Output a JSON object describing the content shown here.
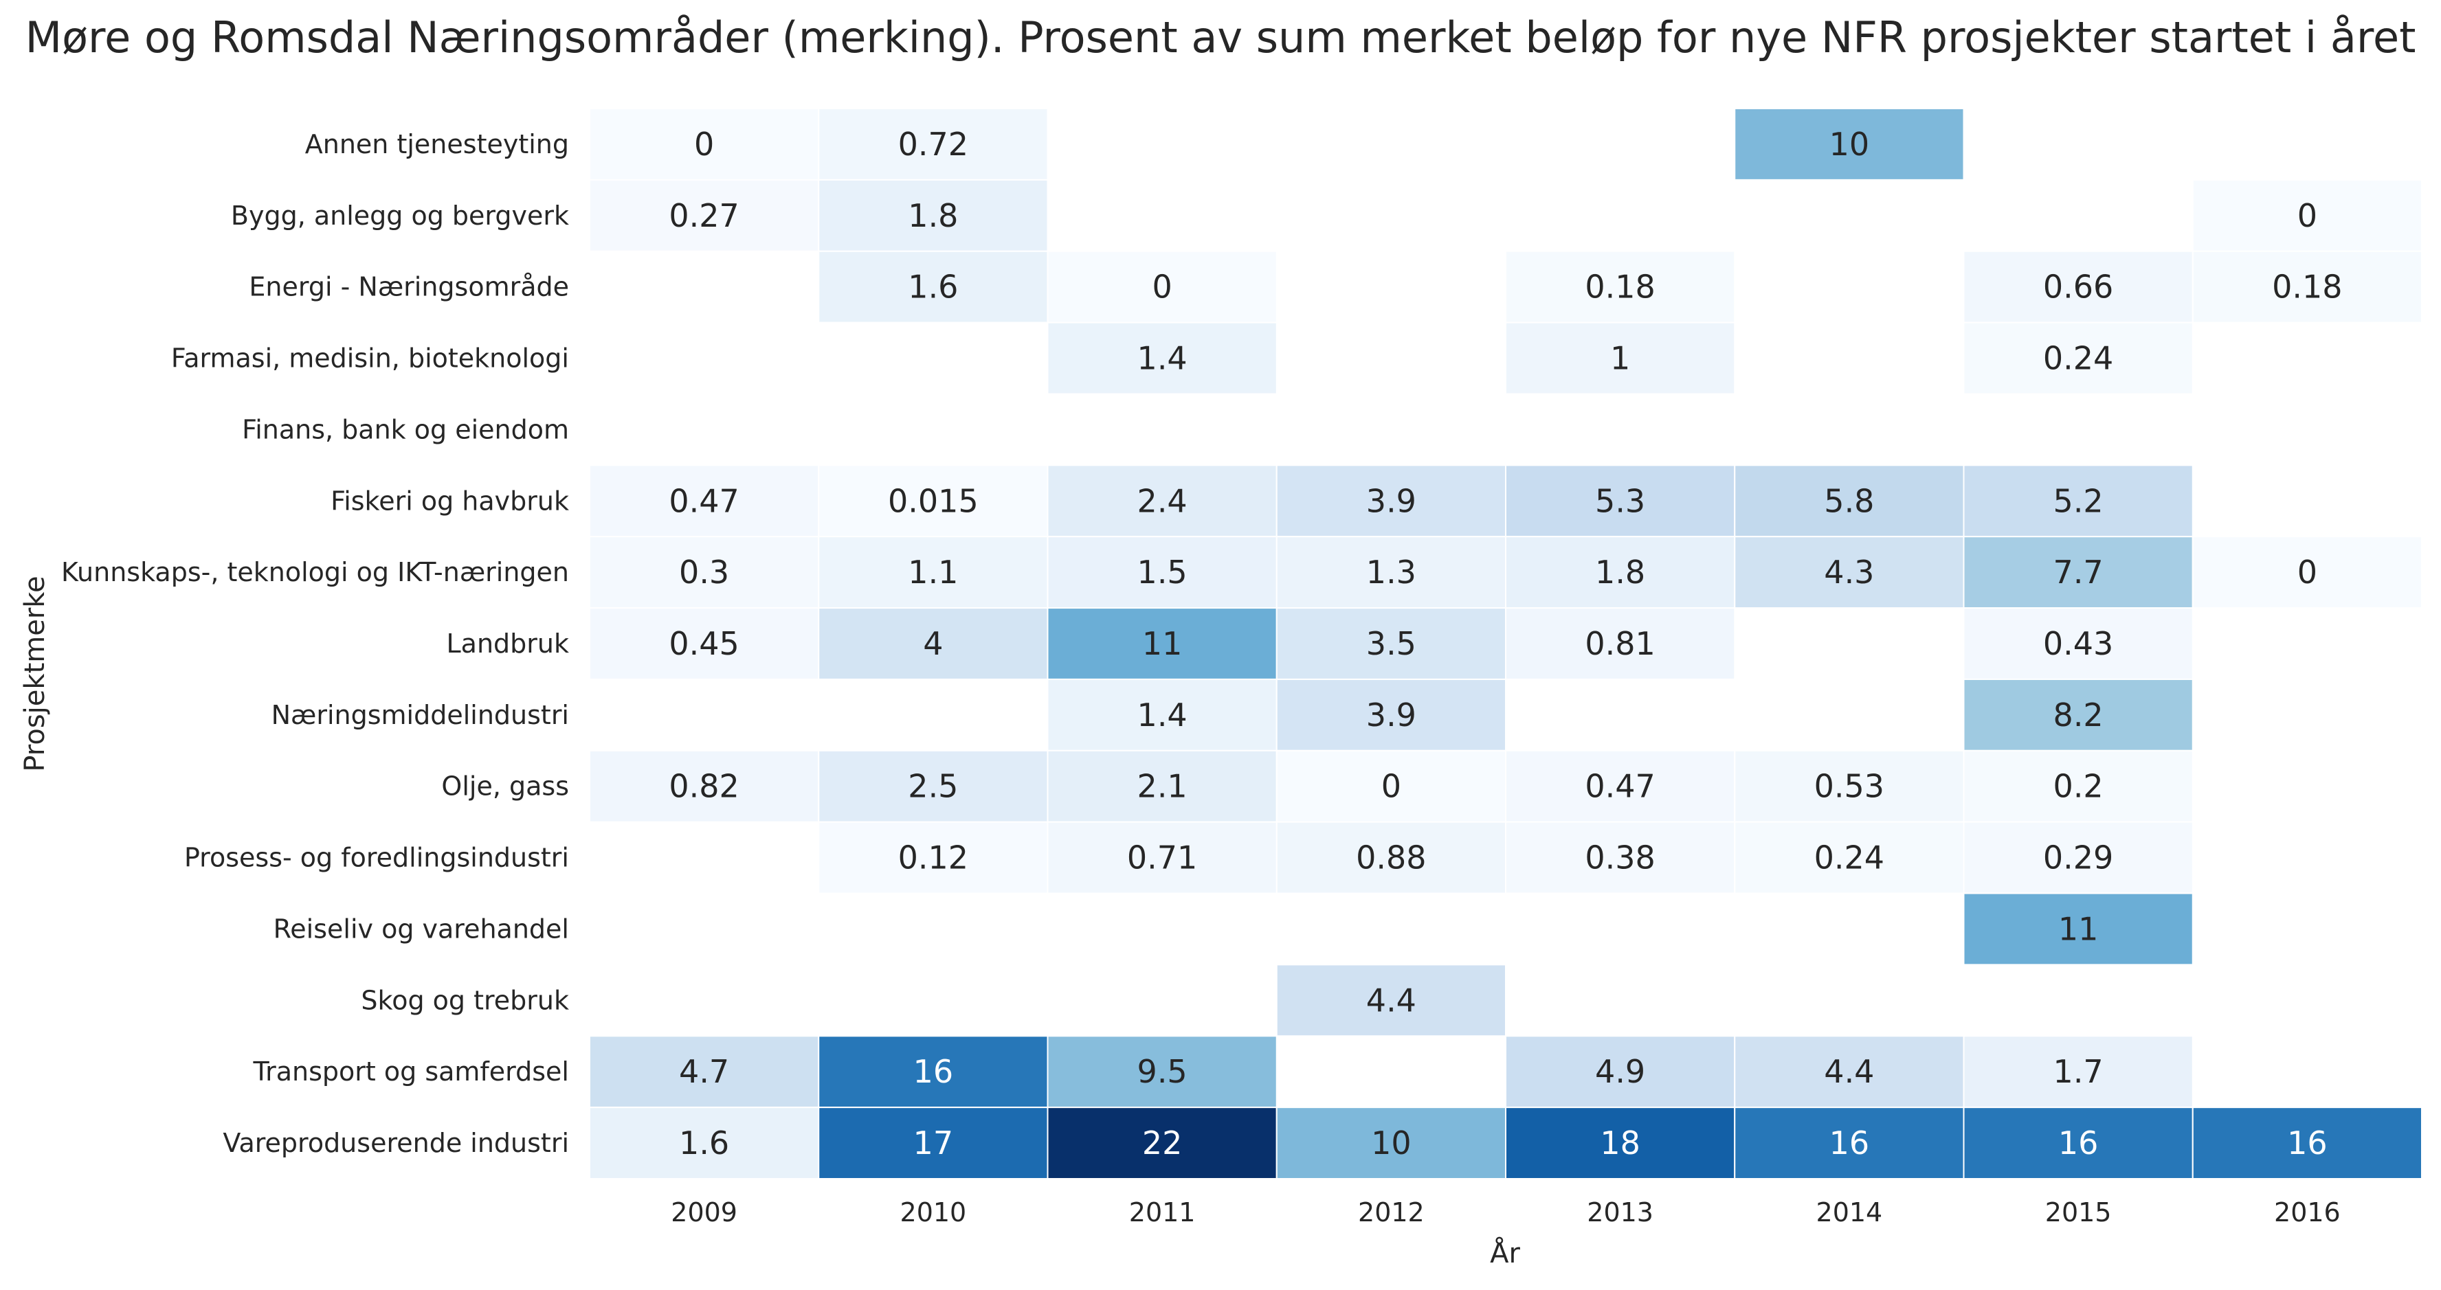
{
  "chart_data": {
    "type": "heatmap",
    "title": "Møre og Romsdal Næringsområder (merking). Prosent av sum merket beløp for nye NFR prosjekter startet i året",
    "xlabel": "År",
    "ylabel": "Prosjektmerke",
    "x_categories": [
      "2009",
      "2010",
      "2011",
      "2012",
      "2013",
      "2014",
      "2015",
      "2016"
    ],
    "y_categories": [
      "Annen tjenesteyting",
      "Bygg, anlegg og bergverk",
      "Energi - Næringsområde",
      "Farmasi, medisin, bioteknologi",
      "Finans, bank og eiendom",
      "Fiskeri og havbruk",
      "Kunnskaps-, teknologi og IKT-næringen",
      "Landbruk",
      "Næringsmiddelindustri",
      "Olje, gass",
      "Prosess- og foredlingsindustri",
      "Reiseliv og varehandel",
      "Skog og trebruk",
      "Transport og samferdsel",
      "Vareproduserende industri"
    ],
    "values": [
      [
        0,
        0.72,
        null,
        null,
        null,
        10,
        null,
        null
      ],
      [
        0.27,
        1.8,
        null,
        null,
        null,
        null,
        null,
        0
      ],
      [
        null,
        1.6,
        0,
        null,
        0.18,
        null,
        0.66,
        0.18
      ],
      [
        null,
        null,
        1.4,
        null,
        1,
        null,
        0.24,
        null
      ],
      [
        null,
        null,
        null,
        null,
        null,
        null,
        null,
        null
      ],
      [
        0.47,
        0.015,
        2.4,
        3.9,
        5.3,
        5.8,
        5.2,
        null
      ],
      [
        0.3,
        1.1,
        1.5,
        1.3,
        1.8,
        4.3,
        7.7,
        0
      ],
      [
        0.45,
        4,
        11,
        3.5,
        0.81,
        null,
        0.43,
        null
      ],
      [
        null,
        null,
        1.4,
        3.9,
        null,
        null,
        8.2,
        null
      ],
      [
        0.82,
        2.5,
        2.1,
        0,
        0.47,
        0.53,
        0.2,
        null
      ],
      [
        null,
        0.12,
        0.71,
        0.88,
        0.38,
        0.24,
        0.29,
        null
      ],
      [
        null,
        null,
        null,
        null,
        null,
        null,
        11,
        null
      ],
      [
        null,
        null,
        null,
        4.4,
        null,
        null,
        null,
        null
      ],
      [
        4.7,
        16,
        9.5,
        null,
        4.9,
        4.4,
        1.7,
        null
      ],
      [
        1.6,
        17,
        22,
        10,
        18,
        16,
        16,
        16
      ]
    ],
    "labels": [
      [
        "0",
        "0.72",
        "",
        "",
        "",
        "10",
        "",
        ""
      ],
      [
        "0.27",
        "1.8",
        "",
        "",
        "",
        "",
        "",
        "0"
      ],
      [
        "",
        "1.6",
        "0",
        "",
        "0.18",
        "",
        "0.66",
        "0.18"
      ],
      [
        "",
        "",
        "1.4",
        "",
        "1",
        "",
        "0.24",
        ""
      ],
      [
        "",
        "",
        "",
        "",
        "",
        "",
        "",
        ""
      ],
      [
        "0.47",
        "0.015",
        "2.4",
        "3.9",
        "5.3",
        "5.8",
        "5.2",
        ""
      ],
      [
        "0.3",
        "1.1",
        "1.5",
        "1.3",
        "1.8",
        "4.3",
        "7.7",
        "0"
      ],
      [
        "0.45",
        "4",
        "11",
        "3.5",
        "0.81",
        "",
        "0.43",
        ""
      ],
      [
        "",
        "",
        "1.4",
        "3.9",
        "",
        "",
        "8.2",
        ""
      ],
      [
        "0.82",
        "2.5",
        "2.1",
        "0",
        "0.47",
        "0.53",
        "0.2",
        ""
      ],
      [
        "",
        "0.12",
        "0.71",
        "0.88",
        "0.38",
        "0.24",
        "0.29",
        ""
      ],
      [
        "",
        "",
        "",
        "",
        "",
        "",
        "11",
        ""
      ],
      [
        "",
        "",
        "",
        "4.4",
        "",
        "",
        "",
        ""
      ],
      [
        "4.7",
        "16",
        "9.5",
        "",
        "4.9",
        "4.4",
        "1.7",
        ""
      ],
      [
        "1.6",
        "17",
        "22",
        "10",
        "18",
        "16",
        "16",
        "16"
      ]
    ],
    "colormap": "Blues",
    "vmin": 0,
    "vmax": 22,
    "colors": {
      "low": "#f7fbff",
      "high": "#08306b",
      "text_dark": "#262626",
      "text_light": "#ffffff",
      "cell_border": "#ffffff"
    },
    "legend": "none",
    "grid": false
  }
}
